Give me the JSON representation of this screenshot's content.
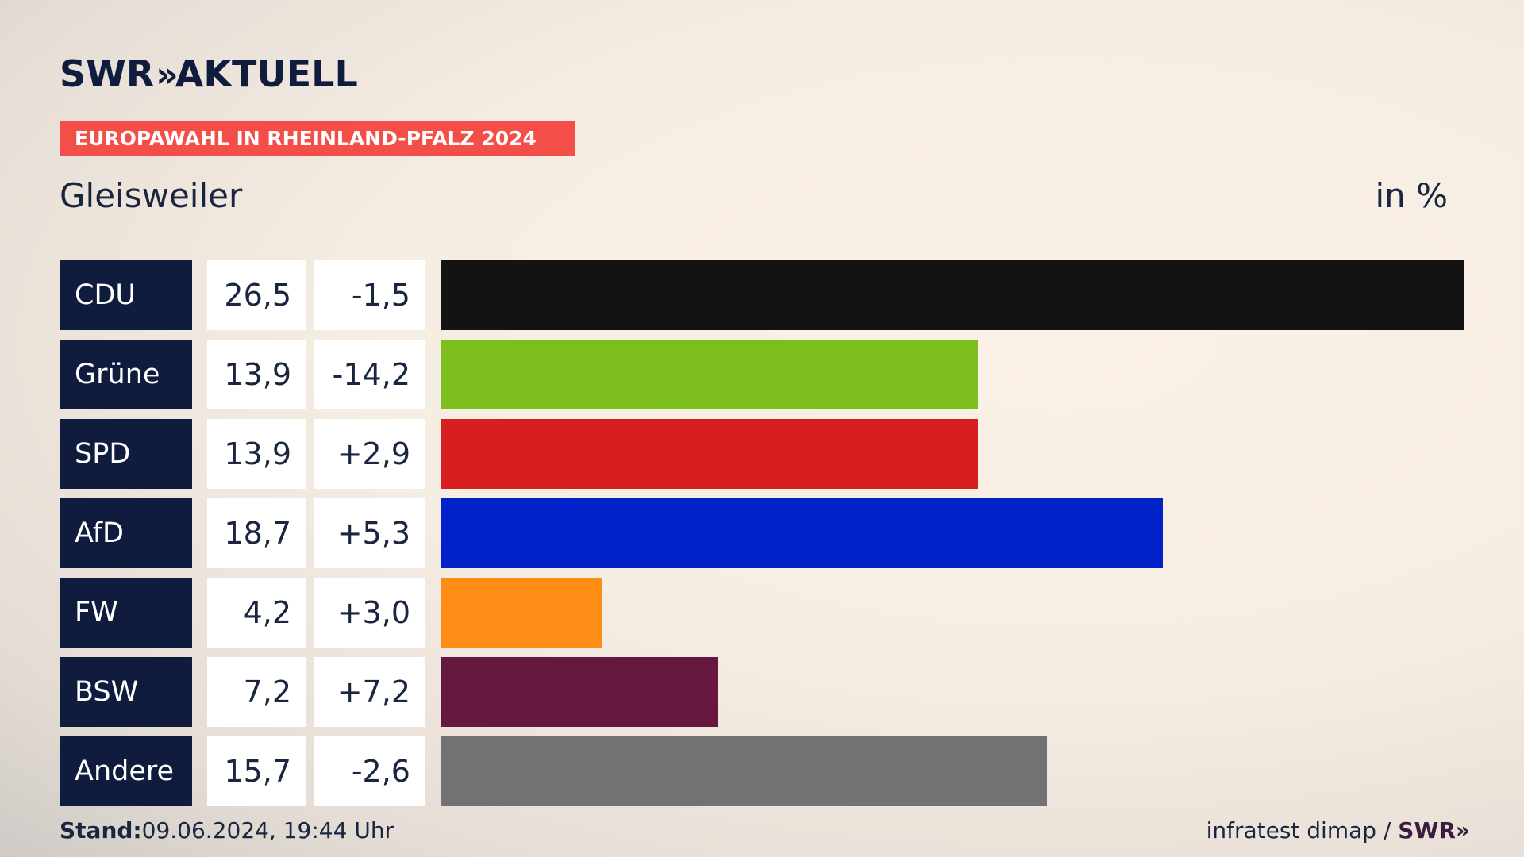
{
  "brand": {
    "swr": "SWR",
    "chevrons": "»",
    "aktuell": "AKTUELL"
  },
  "banner": "EUROPAWAHL IN RHEINLAND-PFALZ 2024",
  "location": "Gleisweiler",
  "unit": "in %",
  "colors": {
    "navy": "#0f1c3d",
    "banner": "#f34e47"
  },
  "chart_data": {
    "type": "bar",
    "orientation": "horizontal",
    "categories": [
      "CDU",
      "Grüne",
      "SPD",
      "AfD",
      "FW",
      "BSW",
      "Andere"
    ],
    "values": [
      26.5,
      13.9,
      13.9,
      18.7,
      4.2,
      7.2,
      15.7
    ],
    "value_labels": [
      "26,5",
      "13,9",
      "13,9",
      "18,7",
      "4,2",
      "7,2",
      "15,7"
    ],
    "change_labels": [
      "-1,5",
      "-14,2",
      "+2,9",
      "+5,3",
      "+3,0",
      "+7,2",
      "-2,6"
    ],
    "colors": [
      "#131313",
      "#7bbe1d",
      "#d81e1e",
      "#0021c8",
      "#ff8c14",
      "#66183f",
      "#717273"
    ],
    "xlim": [
      0,
      26.5
    ]
  },
  "footer": {
    "stand_label": "Stand:",
    "stand_value": "09.06.2024, 19:44 Uhr",
    "source": "infratest dimap / ",
    "source_brand": "SWR",
    "source_chevrons": "»"
  }
}
